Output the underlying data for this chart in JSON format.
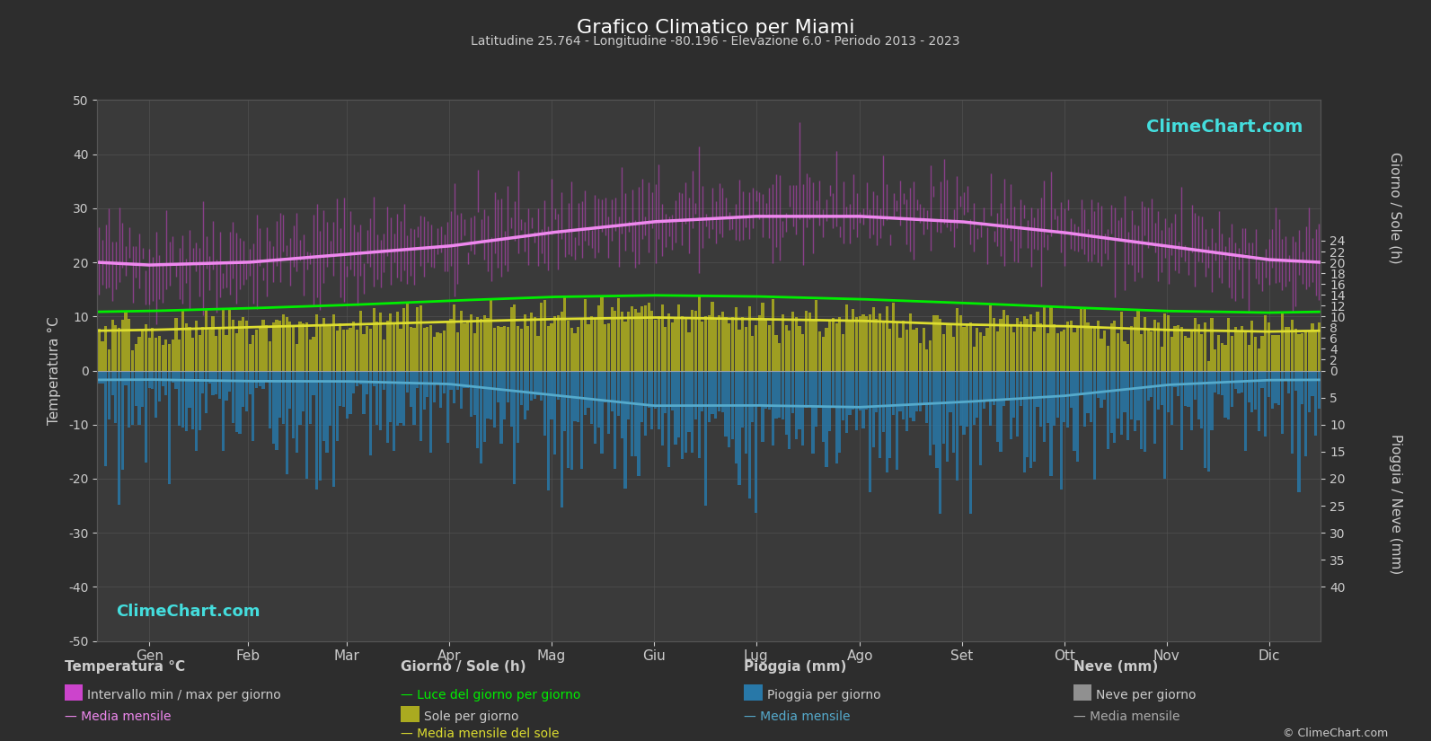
{
  "title": "Grafico Climatico per Miami",
  "subtitle": "Latitudine 25.764 - Longitudine -80.196 - Elevazione 6.0 - Periodo 2013 - 2023",
  "background_color": "#2d2d2d",
  "plot_bg_color": "#3a3a3a",
  "grid_color": "#555555",
  "text_color": "#cccccc",
  "months": [
    "Gen",
    "Feb",
    "Mar",
    "Apr",
    "Mag",
    "Giu",
    "Lug",
    "Ago",
    "Set",
    "Ott",
    "Nov",
    "Dic"
  ],
  "temp_ylim": [
    -50,
    50
  ],
  "temp_mean_monthly": [
    19.5,
    20.0,
    21.5,
    23.0,
    25.5,
    27.5,
    28.5,
    28.5,
    27.5,
    25.5,
    23.0,
    20.5
  ],
  "temp_max_monthly": [
    24.5,
    25.0,
    26.5,
    28.0,
    30.0,
    31.5,
    32.5,
    32.5,
    31.5,
    29.0,
    27.0,
    25.0
  ],
  "temp_min_monthly": [
    14.5,
    15.5,
    17.5,
    20.0,
    22.5,
    24.5,
    25.5,
    26.0,
    25.0,
    22.5,
    19.5,
    16.0
  ],
  "temp_daily_noise": 3.5,
  "daylight_monthly": [
    11.0,
    11.5,
    12.1,
    12.9,
    13.6,
    13.9,
    13.7,
    13.2,
    12.5,
    11.7,
    11.0,
    10.7
  ],
  "sunshine_monthly": [
    7.5,
    8.0,
    8.5,
    9.0,
    9.5,
    9.8,
    9.5,
    9.2,
    8.5,
    8.2,
    7.5,
    7.2
  ],
  "rain_mean_monthly_mm": [
    52,
    55,
    62,
    75,
    140,
    195,
    200,
    210,
    175,
    145,
    80,
    55
  ],
  "rain_daily_noise_mm": 8.0,
  "noise_seed": 42,
  "colors": {
    "temp_band": "#cc44cc",
    "temp_mean_line": "#ee88ee",
    "daylight_line": "#00ee00",
    "sunshine_fill": "#aaaa20",
    "sunshine_mean_line": "#dddd30",
    "rain_fill": "#2878a8",
    "rain_mean_line": "#55aacc",
    "snow_fill": "#909090"
  },
  "right_axis_ticks": [
    0,
    2,
    4,
    6,
    8,
    10,
    12,
    14,
    16,
    18,
    20,
    22,
    24
  ],
  "rain_axis_ticks_mm": [
    0,
    5,
    10,
    15,
    20,
    25,
    30,
    35,
    40
  ],
  "legend": {
    "col1_title": "Temperatura °C",
    "col1_item1": "Intervallo min / max per giorno",
    "col1_item2": "Media mensile",
    "col2_title": "Giorno / Sole (h)",
    "col2_item1": "Luce del giorno per giorno",
    "col2_item2": "Sole per giorno",
    "col2_item3": "Media mensile del sole",
    "col3_title": "Pioggia (mm)",
    "col3_item1": "Pioggia per giorno",
    "col3_item2": "Media mensile",
    "col4_title": "Neve (mm)",
    "col4_item1": "Neve per giorno",
    "col4_item2": "Media mensile"
  },
  "watermark": "ClimeChart.com",
  "copyright": "© ClimeChart.com"
}
